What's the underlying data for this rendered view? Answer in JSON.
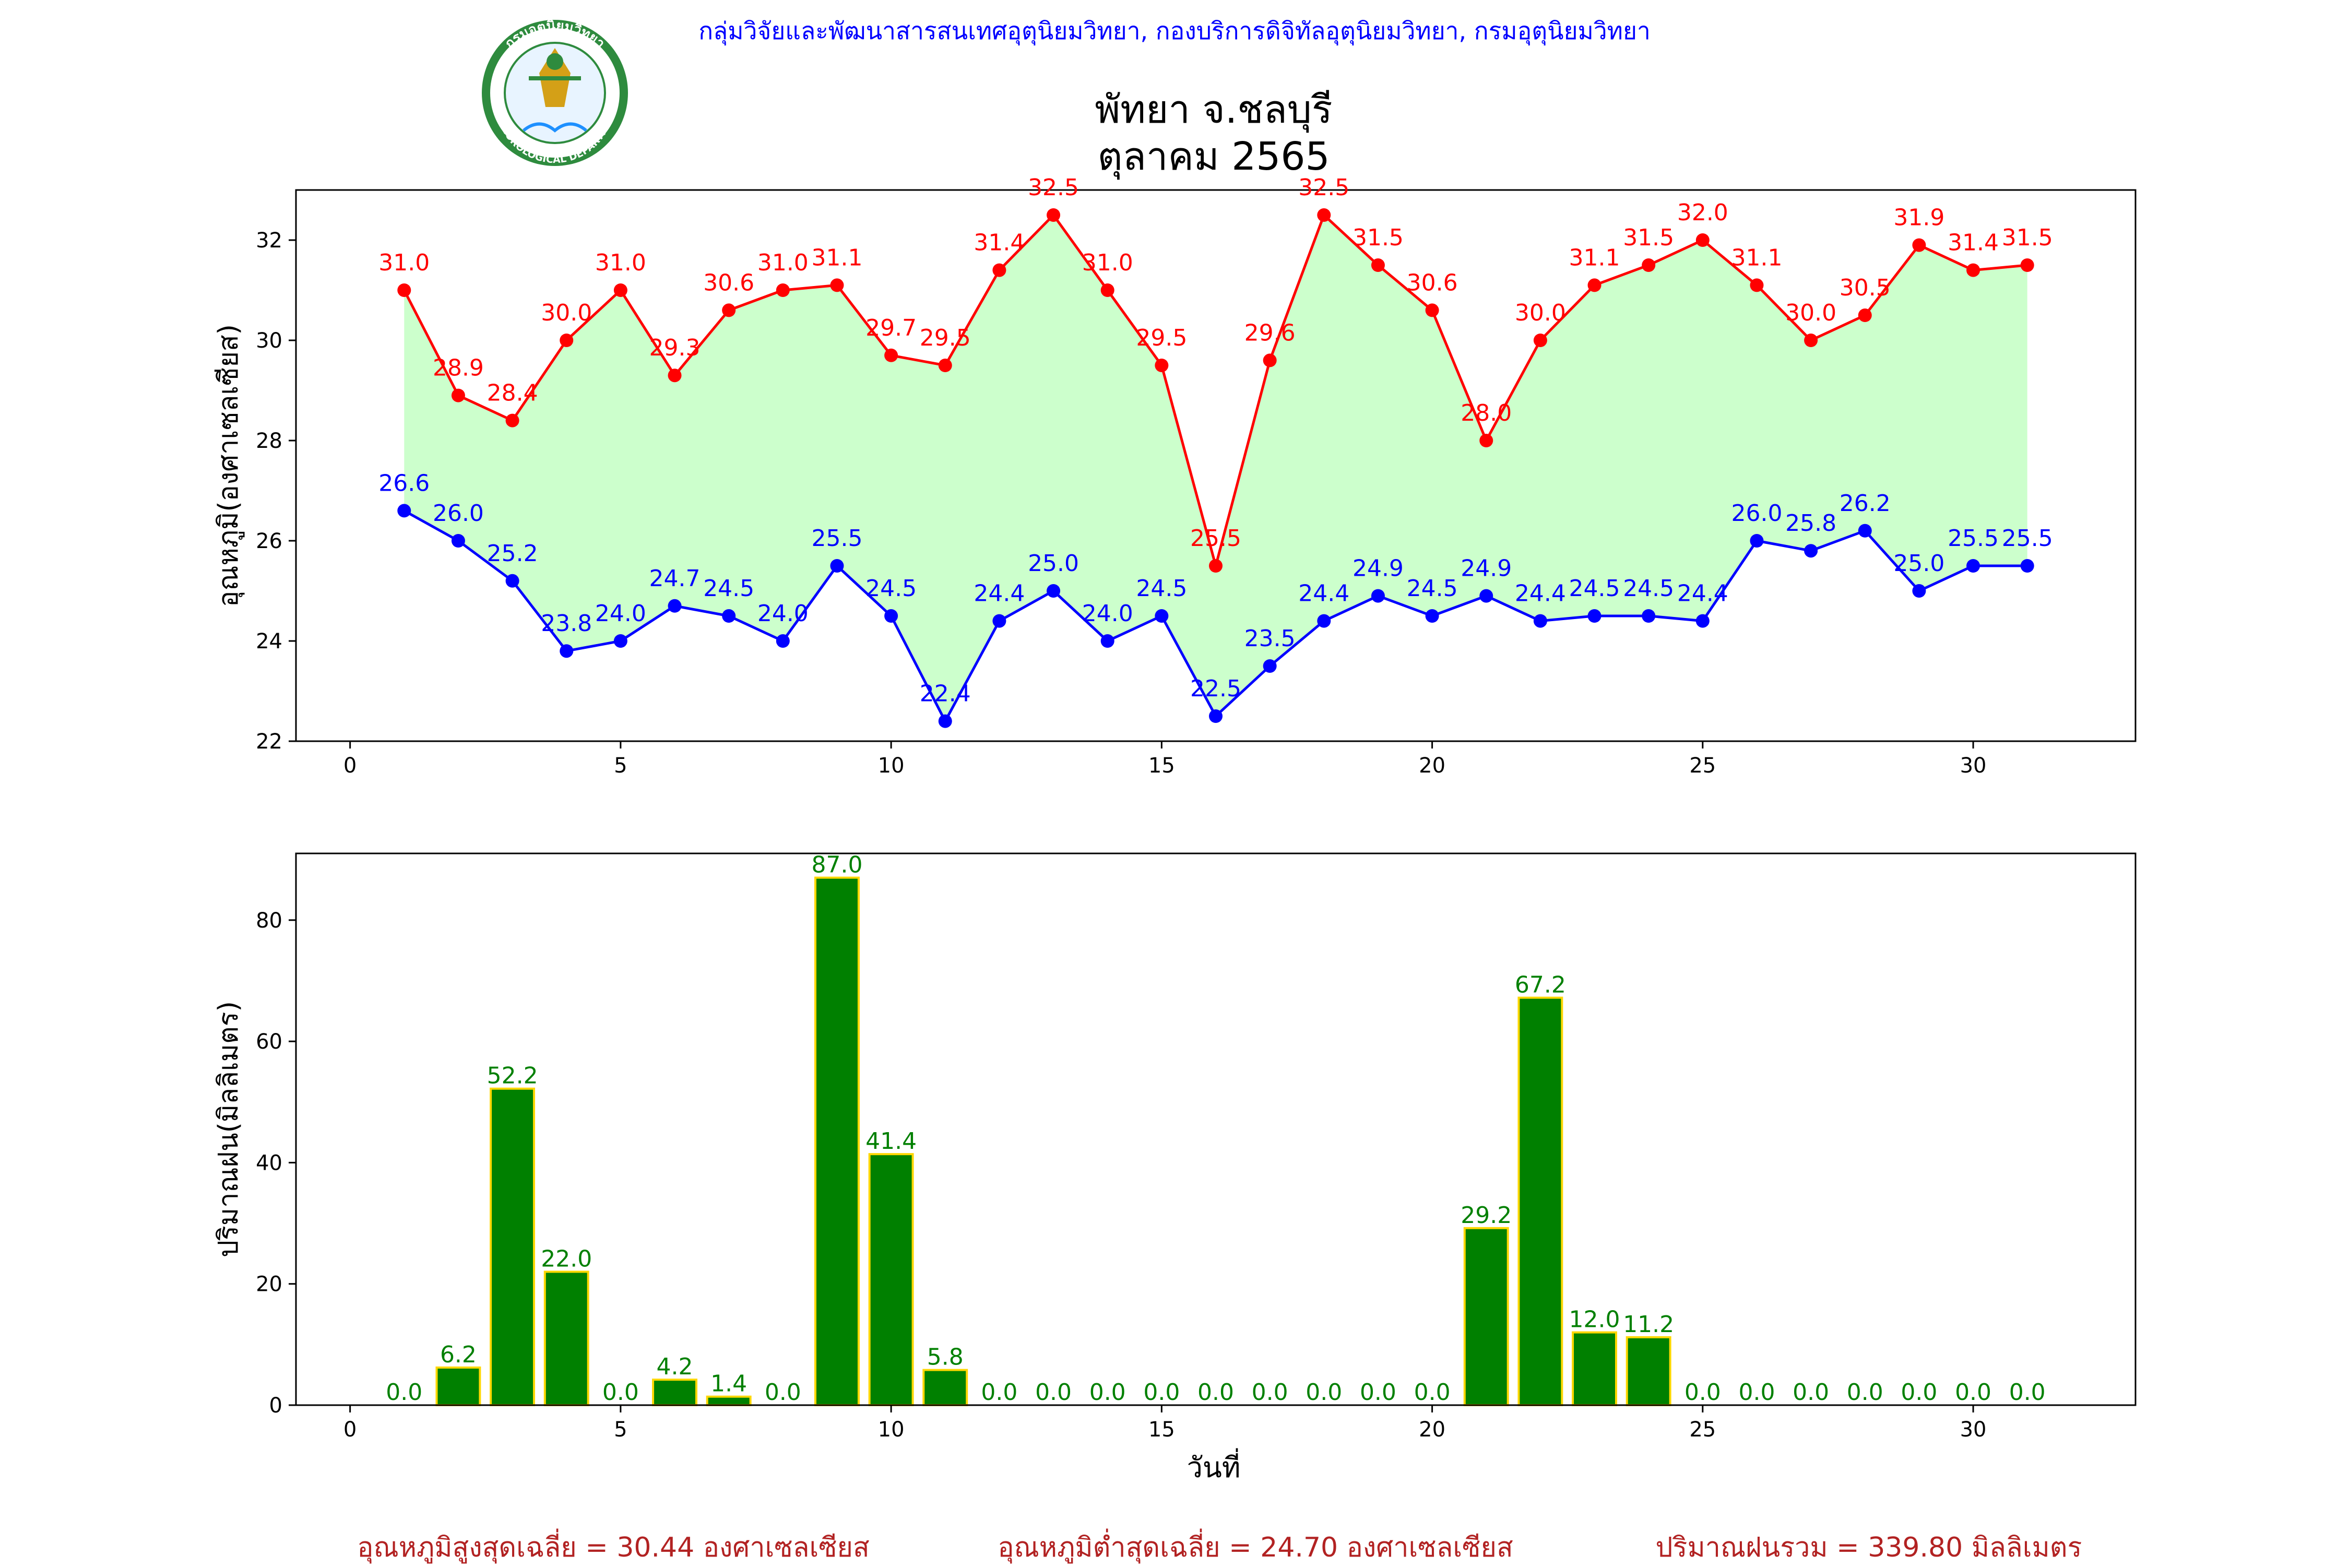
{
  "header": {
    "source": "กลุ่มวิจัยและพัฒนาสารสนเทศอุตุนิยมวิทยา, กองบริการดิจิทัลอุตุนิยมวิทยา, กรมอุตุนิยมวิทยา",
    "logo_text_top": "กรมอุตุนิยมวิทยา",
    "logo_text_bottom": "METEOROLOGICAL DEPARTMENT",
    "title_line1": "พัทยา จ.ชลบุรี",
    "title_line2": "ตุลาคม 2565"
  },
  "colors": {
    "max_series": "#ff0000",
    "min_series": "#0000ff",
    "fill": "#ccffcc",
    "bar_fill": "#008000",
    "bar_edge": "#ffd700",
    "header_text": "#0000ff",
    "summary_text": "#b22222"
  },
  "chart_data": [
    {
      "type": "line",
      "ylabel": "อุณหภูมิ(องศาเซลเซียส)",
      "xlabel": "",
      "xlim": [
        -1,
        33
      ],
      "ylim": [
        22,
        33
      ],
      "xticks": [
        0,
        5,
        10,
        15,
        20,
        25,
        30
      ],
      "yticks": [
        22,
        24,
        26,
        28,
        30,
        32
      ],
      "x": [
        1,
        2,
        3,
        4,
        5,
        6,
        7,
        8,
        9,
        10,
        11,
        12,
        13,
        14,
        15,
        16,
        17,
        18,
        19,
        20,
        21,
        22,
        23,
        24,
        25,
        26,
        27,
        28,
        29,
        30,
        31
      ],
      "series": [
        {
          "key": "max",
          "values": [
            31.0,
            28.9,
            28.4,
            30.0,
            31.0,
            29.3,
            30.6,
            31.0,
            31.1,
            29.7,
            29.5,
            31.4,
            32.5,
            31.0,
            29.5,
            25.5,
            29.6,
            32.5,
            31.5,
            30.6,
            28.0,
            30.0,
            31.1,
            31.5,
            32.0,
            31.1,
            30.0,
            30.5,
            31.9,
            31.4,
            31.5
          ]
        },
        {
          "key": "min",
          "values": [
            26.6,
            26.0,
            25.2,
            23.8,
            24.0,
            24.7,
            24.5,
            24.0,
            25.5,
            24.5,
            22.4,
            24.4,
            25.0,
            24.0,
            24.5,
            22.5,
            23.5,
            24.4,
            24.9,
            24.5,
            24.9,
            24.4,
            24.5,
            24.5,
            24.4,
            26.0,
            25.8,
            26.2,
            25.0,
            25.5,
            25.5
          ]
        }
      ],
      "grid": false,
      "fill_between": true
    },
    {
      "type": "bar",
      "ylabel": "ปริมาณฝน(มิลลิเมตร)",
      "xlabel": "วันที่",
      "xlim": [
        -1,
        33
      ],
      "ylim": [
        0,
        91
      ],
      "xticks": [
        0,
        5,
        10,
        15,
        20,
        25,
        30
      ],
      "yticks": [
        0,
        20,
        40,
        60,
        80
      ],
      "x": [
        1,
        2,
        3,
        4,
        5,
        6,
        7,
        8,
        9,
        10,
        11,
        12,
        13,
        14,
        15,
        16,
        17,
        18,
        19,
        20,
        21,
        22,
        23,
        24,
        25,
        26,
        27,
        28,
        29,
        30,
        31
      ],
      "values": [
        0.0,
        6.2,
        52.2,
        22.0,
        0.0,
        4.2,
        1.4,
        0.0,
        87.0,
        41.4,
        5.8,
        0.0,
        0.0,
        0.0,
        0.0,
        0.0,
        0.0,
        0.0,
        0.0,
        0.0,
        29.2,
        67.2,
        12.0,
        11.2,
        0.0,
        0.0,
        0.0,
        0.0,
        0.0,
        0.0,
        0.0
      ],
      "grid": false
    }
  ],
  "summary": {
    "avg_max": "อุณหภูมิสูงสุดเฉลี่ย = 30.44 องศาเซลเซียส",
    "avg_min": "อุณหภูมิต่ำสุดเฉลี่ย = 24.70 องศาเซลเซียส",
    "rain_total": "ปริมาณฝนรวม = 339.80 มิลลิเมตร"
  }
}
